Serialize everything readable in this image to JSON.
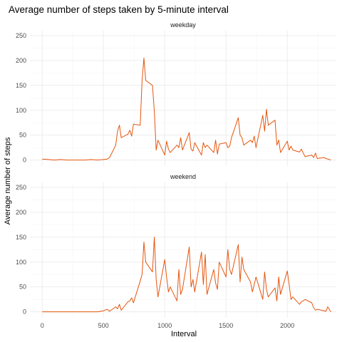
{
  "chart_data": {
    "type": "line",
    "title": "Average number of steps taken by 5-minute interval",
    "xlabel": "Interval",
    "ylabel": "Average number of steps",
    "xlim": [
      -100,
      2400
    ],
    "ylim": [
      -12,
      260
    ],
    "x_ticks": [
      0,
      500,
      1000,
      1500,
      2000
    ],
    "y_ticks": [
      0,
      50,
      100,
      150,
      200,
      250
    ],
    "grid": true,
    "line_color": "#e6550d",
    "facets": [
      {
        "label": "weekday",
        "x": [
          0,
          50,
          100,
          150,
          200,
          250,
          300,
          350,
          400,
          450,
          500,
          530,
          550,
          600,
          615,
          630,
          645,
          700,
          715,
          730,
          745,
          800,
          815,
          830,
          845,
          900,
          915,
          930,
          945,
          1000,
          1015,
          1030,
          1045,
          1100,
          1115,
          1130,
          1145,
          1200,
          1215,
          1230,
          1245,
          1300,
          1315,
          1330,
          1345,
          1400,
          1415,
          1430,
          1445,
          1500,
          1515,
          1530,
          1545,
          1600,
          1615,
          1630,
          1645,
          1700,
          1715,
          1730,
          1745,
          1800,
          1815,
          1830,
          1845,
          1900,
          1915,
          1930,
          1945,
          2000,
          2015,
          2030,
          2045,
          2100,
          2115,
          2130,
          2145,
          2200,
          2215,
          2230,
          2245,
          2300,
          2315,
          2330,
          2355
        ],
        "values": [
          2,
          1,
          0,
          1,
          0,
          0,
          0,
          0,
          1,
          0,
          1,
          2,
          5,
          30,
          58,
          70,
          45,
          52,
          60,
          48,
          72,
          70,
          160,
          205,
          160,
          150,
          98,
          20,
          40,
          10,
          38,
          22,
          15,
          30,
          25,
          45,
          20,
          55,
          22,
          18,
          35,
          10,
          35,
          25,
          30,
          15,
          40,
          12,
          32,
          35,
          25,
          28,
          45,
          85,
          50,
          45,
          30,
          40,
          35,
          48,
          25,
          90,
          58,
          102,
          70,
          80,
          30,
          40,
          15,
          38,
          20,
          28,
          20,
          16,
          22,
          14,
          7,
          10,
          5,
          14,
          3,
          5,
          3,
          2,
          0
        ]
      },
      {
        "label": "weekend",
        "x": [
          0,
          50,
          100,
          150,
          200,
          250,
          300,
          350,
          400,
          450,
          500,
          530,
          550,
          600,
          615,
          630,
          645,
          700,
          715,
          730,
          745,
          800,
          815,
          830,
          845,
          900,
          915,
          930,
          945,
          1000,
          1015,
          1030,
          1045,
          1100,
          1115,
          1130,
          1145,
          1200,
          1215,
          1230,
          1245,
          1300,
          1315,
          1330,
          1345,
          1400,
          1415,
          1430,
          1445,
          1500,
          1515,
          1530,
          1545,
          1600,
          1615,
          1630,
          1645,
          1700,
          1715,
          1730,
          1745,
          1800,
          1815,
          1830,
          1845,
          1900,
          1915,
          1930,
          1945,
          2000,
          2015,
          2030,
          2045,
          2100,
          2115,
          2130,
          2145,
          2200,
          2215,
          2230,
          2245,
          2300,
          2315,
          2330,
          2355
        ],
        "values": [
          0,
          0,
          0,
          0,
          0,
          0,
          0,
          0,
          0,
          0,
          2,
          5,
          1,
          10,
          6,
          15,
          3,
          20,
          22,
          28,
          18,
          62,
          75,
          140,
          100,
          80,
          150,
          65,
          30,
          105,
          70,
          40,
          50,
          22,
          85,
          35,
          45,
          130,
          50,
          65,
          40,
          120,
          55,
          115,
          35,
          85,
          58,
          45,
          100,
          70,
          125,
          85,
          75,
          135,
          60,
          110,
          85,
          60,
          40,
          55,
          70,
          25,
          80,
          45,
          30,
          48,
          22,
          70,
          35,
          82,
          55,
          25,
          30,
          15,
          20,
          22,
          25,
          18,
          8,
          3,
          5,
          2,
          1,
          10,
          0
        ]
      }
    ]
  }
}
